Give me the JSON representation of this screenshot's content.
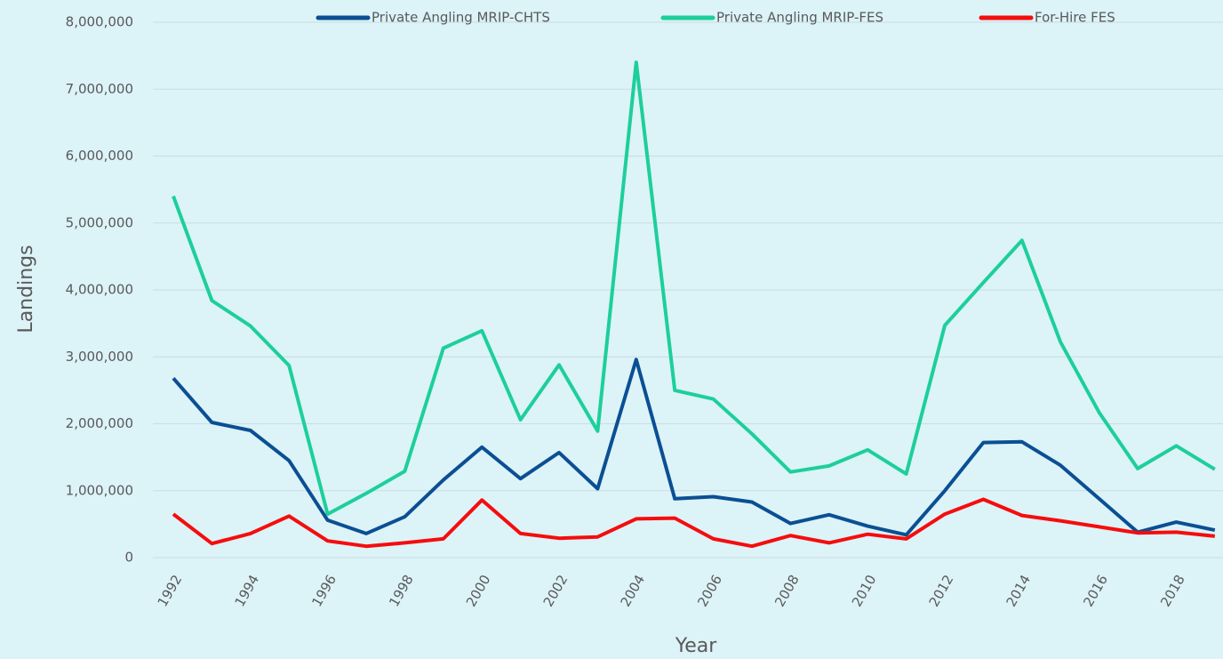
{
  "chart_data": {
    "type": "line",
    "y_label": "Landings",
    "x_label": "Year",
    "categories": [
      "1992",
      null,
      "1994",
      null,
      "1996",
      null,
      "1998",
      null,
      "2000",
      null,
      "2002",
      null,
      "2004",
      null,
      "2006",
      null,
      "2008",
      null,
      "2010",
      null,
      "2012",
      null,
      "2014",
      null,
      "2016",
      null,
      "2018",
      null
    ],
    "series": [
      {
        "name": "Private Angling MRIP-CHTS",
        "color": "#0b4f93",
        "values": [
          2680000,
          2020000,
          1900000,
          1450000,
          560000,
          360000,
          610000,
          1160000,
          1650000,
          1180000,
          1570000,
          1030000,
          2960000,
          880000,
          910000,
          830000,
          510000,
          640000,
          470000,
          340000,
          1000000,
          1720000,
          1730000,
          1380000,
          880000,
          380000,
          530000,
          410000
        ]
      },
      {
        "name": "Private Angling MRIP-FES",
        "color": "#1dcf9a",
        "values": [
          5400000,
          3840000,
          3460000,
          2870000,
          650000,
          960000,
          1290000,
          3130000,
          3390000,
          2060000,
          2880000,
          1890000,
          7400000,
          2500000,
          2370000,
          1850000,
          1280000,
          1370000,
          1610000,
          1250000,
          3470000,
          4110000,
          4740000,
          3220000,
          2170000,
          1330000,
          1670000,
          1320000
        ]
      },
      {
        "name": "For-Hire FES",
        "color": "#f50d0d",
        "values": [
          650000,
          210000,
          360000,
          620000,
          250000,
          170000,
          220000,
          280000,
          860000,
          360000,
          290000,
          310000,
          580000,
          590000,
          280000,
          170000,
          330000,
          220000,
          350000,
          280000,
          650000,
          870000,
          630000,
          550000,
          460000,
          370000,
          380000,
          320000
        ]
      }
    ],
    "ylim": [
      0,
      8000000
    ],
    "yticks": [
      0,
      {
        "value": 1000000,
        "label": "1,000,000"
      },
      {
        "value": 2000000,
        "label": "2,000,000"
      },
      {
        "value": 3000000,
        "label": "3,000,000"
      },
      {
        "value": 4000000,
        "label": "4,000,000"
      },
      {
        "value": 5000000,
        "label": "5,000,000"
      },
      {
        "value": 6000000,
        "label": "6,000,000"
      },
      {
        "value": 7000000,
        "label": "7,000,000"
      },
      {
        "value": 8000000,
        "label": "8,000,000"
      }
    ],
    "grid": true,
    "legend": "top"
  }
}
